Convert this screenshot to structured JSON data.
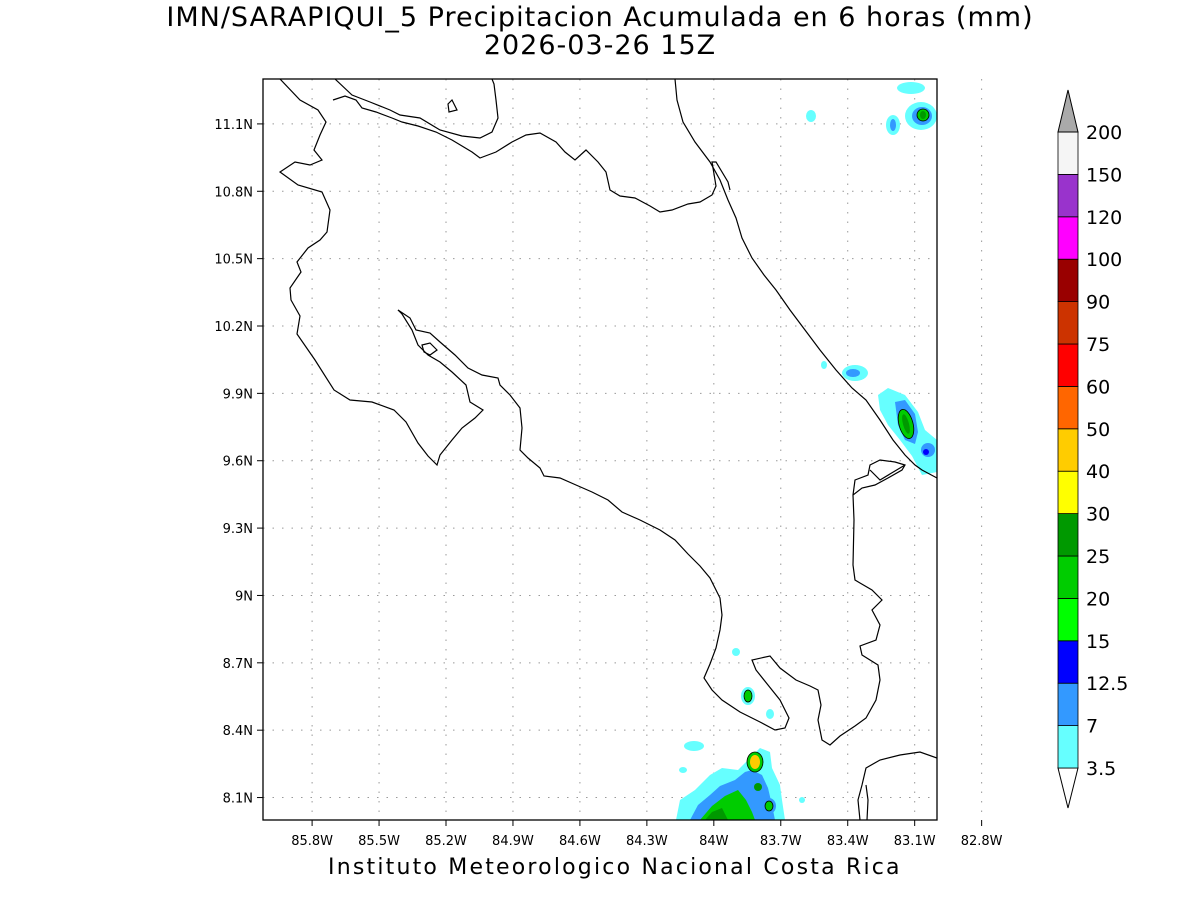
{
  "title_line1": "IMN/SARAPIQUI_5 Precipitacion Acumulada en 6 horas (mm)",
  "title_line2": "2026-03-26 15Z",
  "footer": "Instituto Meteorologico Nacional Costa Rica",
  "map": {
    "lon_range": [
      -86.02,
      -83.0
    ],
    "lat_range": [
      8.0,
      11.3
    ],
    "lat_labels": [
      {
        "lat": 11.1,
        "label": "11.1N"
      },
      {
        "lat": 10.8,
        "label": "10.8N"
      },
      {
        "lat": 10.5,
        "label": "10.5N"
      },
      {
        "lat": 10.2,
        "label": "10.2N"
      },
      {
        "lat": 9.9,
        "label": "9.9N"
      },
      {
        "lat": 9.6,
        "label": "9.6N"
      },
      {
        "lat": 9.3,
        "label": "9.3N"
      },
      {
        "lat": 9.0,
        "label": "9N"
      },
      {
        "lat": 8.7,
        "label": "8.7N"
      },
      {
        "lat": 8.4,
        "label": "8.4N"
      },
      {
        "lat": 8.1,
        "label": "8.1N"
      }
    ],
    "lon_labels": [
      {
        "lon": -85.8,
        "label": "85.8W"
      },
      {
        "lon": -85.5,
        "label": "85.5W"
      },
      {
        "lon": -85.2,
        "label": "85.2W"
      },
      {
        "lon": -84.9,
        "label": "84.9W"
      },
      {
        "lon": -84.6,
        "label": "84.6W"
      },
      {
        "lon": -84.3,
        "label": "84.3W"
      },
      {
        "lon": -84.0,
        "label": "84W"
      },
      {
        "lon": -83.7,
        "label": "83.7W"
      },
      {
        "lon": -83.4,
        "label": "83.4W"
      },
      {
        "lon": -83.1,
        "label": "83.1W"
      },
      {
        "lon": -82.8,
        "label": "82.8W"
      }
    ]
  },
  "legend": {
    "levels": [
      {
        "label": "3.5",
        "color": "#66ffff"
      },
      {
        "label": "7",
        "color": "#3399ff"
      },
      {
        "label": "12.5",
        "color": "#0000ff"
      },
      {
        "label": "15",
        "color": "#00ff00"
      },
      {
        "label": "20",
        "color": "#00cc00"
      },
      {
        "label": "25",
        "color": "#009900"
      },
      {
        "label": "30",
        "color": "#ffff00"
      },
      {
        "label": "40",
        "color": "#ffcc00"
      },
      {
        "label": "50",
        "color": "#ff6600"
      },
      {
        "label": "60",
        "color": "#ff0000"
      },
      {
        "label": "75",
        "color": "#cc3300"
      },
      {
        "label": "90",
        "color": "#990000"
      },
      {
        "label": "100",
        "color": "#ff00ff"
      },
      {
        "label": "120",
        "color": "#9933cc"
      },
      {
        "label": "150",
        "color": "#f5f5f5"
      },
      {
        "label": "200",
        "color": "#aaaaaa"
      }
    ]
  }
}
